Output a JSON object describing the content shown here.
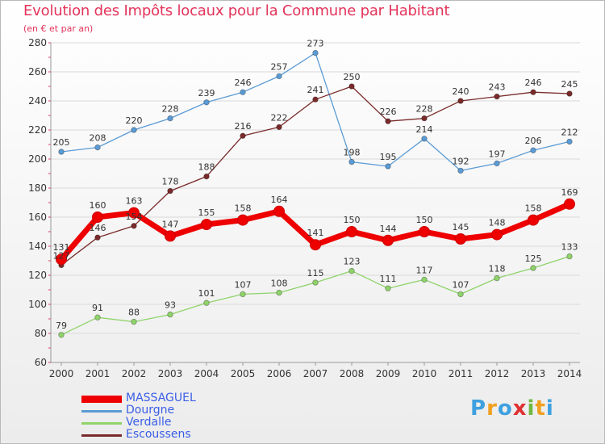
{
  "header": {
    "title": "Evolution des Impôts locaux pour la Commune par Habitant",
    "subtitle": "(en € et par an)"
  },
  "colors": {
    "title": "#e3335a",
    "legend_text": "#3b5ee7",
    "axis": "#999999",
    "grid": "#d9d9d9",
    "tick_mark": "#e3335a"
  },
  "logo": {
    "text": "Proxiti",
    "letters": [
      "P",
      "r",
      "o",
      "x",
      "i",
      "t",
      "i"
    ],
    "colors": [
      "#3fa0e0",
      "#f0a020",
      "#3fa0e0",
      "#e03030",
      "#70b840",
      "#f0a020",
      "#3fa0e0"
    ]
  },
  "chart_data": {
    "type": "line",
    "title": "Evolution des Impôts locaux pour la Commune par Habitant",
    "subtitle": "(en € et par an)",
    "categories": [
      "2000",
      "2001",
      "2002",
      "2003",
      "2004",
      "2005",
      "2006",
      "2007",
      "2008",
      "2009",
      "2010",
      "2011",
      "2012",
      "2013",
      "2014"
    ],
    "ylim": [
      60,
      280
    ],
    "yticks": [
      60,
      80,
      100,
      120,
      140,
      160,
      180,
      200,
      220,
      240,
      260,
      280
    ],
    "grid": "horizontal",
    "legend_position": "bottom-left",
    "series": [
      {
        "name": "Dourgne",
        "color": "#5b9bd5",
        "values": [
          205,
          208,
          220,
          228,
          239,
          246,
          257,
          273,
          198,
          195,
          214,
          192,
          197,
          206,
          212
        ]
      },
      {
        "name": "Escoussens",
        "color": "#7a2a2a",
        "values": [
          127,
          146,
          154,
          178,
          188,
          216,
          222,
          241,
          250,
          226,
          228,
          240,
          243,
          246,
          245
        ]
      },
      {
        "name": "Verdalle",
        "color": "#8fd36a",
        "values": [
          79,
          91,
          88,
          93,
          101,
          107,
          108,
          115,
          123,
          111,
          117,
          107,
          118,
          125,
          133
        ]
      },
      {
        "name": "MASSAGUEL",
        "color": "#ee0000",
        "values": [
          131,
          160,
          163,
          147,
          155,
          158,
          164,
          141,
          150,
          144,
          150,
          145,
          148,
          158,
          169
        ]
      }
    ],
    "legend_order": [
      "MASSAGUEL",
      "Dourgne",
      "Verdalle",
      "Escoussens"
    ]
  }
}
